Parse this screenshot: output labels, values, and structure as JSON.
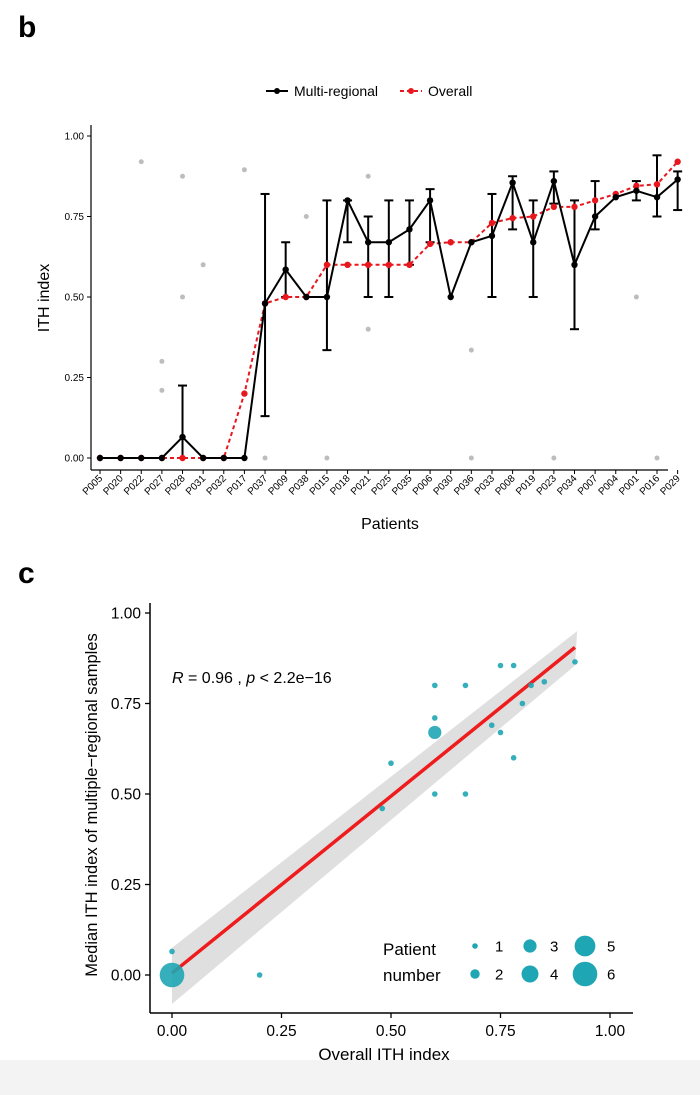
{
  "chart_data": [
    {
      "panel": "b",
      "type": "line",
      "xlabel": "Patients",
      "ylabel": "ITH index",
      "ylim": [
        0,
        1
      ],
      "yticks": [
        "0.00",
        "0.25",
        "0.50",
        "0.75",
        "1.00"
      ],
      "legend_placement": "top-center",
      "categories": [
        "P005",
        "P020",
        "P022",
        "P027",
        "P028",
        "P031",
        "P032",
        "P017",
        "P037",
        "P009",
        "P038",
        "P015",
        "P018",
        "P021",
        "P025",
        "P035",
        "P006",
        "P030",
        "P036",
        "P033",
        "P008",
        "P019",
        "P023",
        "P034",
        "P007",
        "P004",
        "P001",
        "P016",
        "P029"
      ],
      "series": [
        {
          "name": "Multi-regional",
          "color": "#000000",
          "style": "solid",
          "values": [
            0,
            0,
            0,
            0,
            0.065,
            0,
            0,
            0,
            0.48,
            0.585,
            0.5,
            0.5,
            0.8,
            0.67,
            0.67,
            0.71,
            0.8,
            0.5,
            0.67,
            0.69,
            0.855,
            0.67,
            0.86,
            0.6,
            0.75,
            0.81,
            0.83,
            0.81,
            0.865
          ],
          "error_low": [
            null,
            null,
            null,
            null,
            0,
            null,
            null,
            null,
            0.13,
            0.5,
            null,
            0.335,
            0.67,
            0.5,
            0.5,
            0.6,
            0.67,
            null,
            null,
            0.5,
            0.71,
            0.5,
            0.79,
            0.4,
            0.71,
            null,
            0.8,
            0.75,
            0.77
          ],
          "error_high": [
            null,
            null,
            null,
            null,
            0.225,
            null,
            null,
            null,
            0.82,
            0.67,
            null,
            0.8,
            0.8,
            0.75,
            0.8,
            0.8,
            0.835,
            null,
            null,
            0.82,
            0.875,
            0.8,
            0.89,
            0.8,
            0.86,
            null,
            0.86,
            0.94,
            0.89
          ]
        },
        {
          "name": "Overall",
          "color": "#e8171d",
          "style": "dashed",
          "values": [
            0,
            0,
            0,
            0,
            0,
            0,
            0,
            0.2,
            0.48,
            0.5,
            0.5,
            0.6,
            0.6,
            0.6,
            0.6,
            0.6,
            0.665,
            0.67,
            0.67,
            0.73,
            0.745,
            0.75,
            0.78,
            0.78,
            0.8,
            0.82,
            0.845,
            0.85,
            0.92
          ]
        }
      ],
      "sample_points": [
        {
          "cat": "P022",
          "y": 0.92
        },
        {
          "cat": "P027",
          "y": 0.3
        },
        {
          "cat": "P027",
          "y": 0.21
        },
        {
          "cat": "P028",
          "y": 0.875
        },
        {
          "cat": "P028",
          "y": 0.5
        },
        {
          "cat": "P031",
          "y": 0.6
        },
        {
          "cat": "P017",
          "y": 0.895
        },
        {
          "cat": "P037",
          "y": 0
        },
        {
          "cat": "P038",
          "y": 0.75
        },
        {
          "cat": "P015",
          "y": 0
        },
        {
          "cat": "P021",
          "y": 0.875
        },
        {
          "cat": "P021",
          "y": 0.4
        },
        {
          "cat": "P036",
          "y": 0.335
        },
        {
          "cat": "P036",
          "y": 0
        },
        {
          "cat": "P023",
          "y": 0
        },
        {
          "cat": "P001",
          "y": 0.5
        },
        {
          "cat": "P016",
          "y": 0
        }
      ]
    },
    {
      "panel": "c",
      "type": "scatter",
      "xlabel": "Overall ITH index",
      "ylabel": "Median ITH index of multiple−regional samples",
      "xlim": [
        -0.05,
        1.05
      ],
      "ylim": [
        -0.07,
        1.02
      ],
      "xticks": [
        "0.00",
        "0.25",
        "0.50",
        "0.75",
        "1.00"
      ],
      "yticks": [
        "0.00",
        "0.25",
        "0.50",
        "0.75",
        "1.00"
      ],
      "point_color": "#1fa6b4",
      "line_color": "#ee1c1c",
      "annotation": {
        "r_label": "R",
        "r_text": " = 0.96 , ",
        "p_label": "p",
        "p_text": " < 2.2e−16"
      },
      "fit": {
        "x0": 0,
        "y0": 0.005,
        "x1": 0.92,
        "y1": 0.905
      },
      "legend": {
        "title_line1": "Patient",
        "title_line2": "number",
        "sizes": [
          "1",
          "2",
          "3",
          "4",
          "5",
          "6"
        ]
      },
      "points": [
        {
          "x": 0,
          "y": 0,
          "n": 6
        },
        {
          "x": 0,
          "y": 0.065,
          "n": 1
        },
        {
          "x": 0.2,
          "y": 0,
          "n": 1
        },
        {
          "x": 0.48,
          "y": 0.46,
          "n": 1
        },
        {
          "x": 0.5,
          "y": 0.585,
          "n": 1
        },
        {
          "x": 0.6,
          "y": 0.8,
          "n": 1
        },
        {
          "x": 0.6,
          "y": 0.71,
          "n": 1
        },
        {
          "x": 0.6,
          "y": 0.67,
          "n": 3
        },
        {
          "x": 0.6,
          "y": 0.5,
          "n": 1
        },
        {
          "x": 0.67,
          "y": 0.8,
          "n": 1
        },
        {
          "x": 0.67,
          "y": 0.5,
          "n": 1
        },
        {
          "x": 0.73,
          "y": 0.69,
          "n": 1
        },
        {
          "x": 0.75,
          "y": 0.855,
          "n": 1
        },
        {
          "x": 0.75,
          "y": 0.67,
          "n": 1
        },
        {
          "x": 0.78,
          "y": 0.855,
          "n": 1
        },
        {
          "x": 0.78,
          "y": 0.6,
          "n": 1
        },
        {
          "x": 0.8,
          "y": 0.75,
          "n": 1
        },
        {
          "x": 0.82,
          "y": 0.8,
          "n": 1
        },
        {
          "x": 0.85,
          "y": 0.81,
          "n": 1
        },
        {
          "x": 0.92,
          "y": 0.865,
          "n": 1
        }
      ]
    }
  ]
}
